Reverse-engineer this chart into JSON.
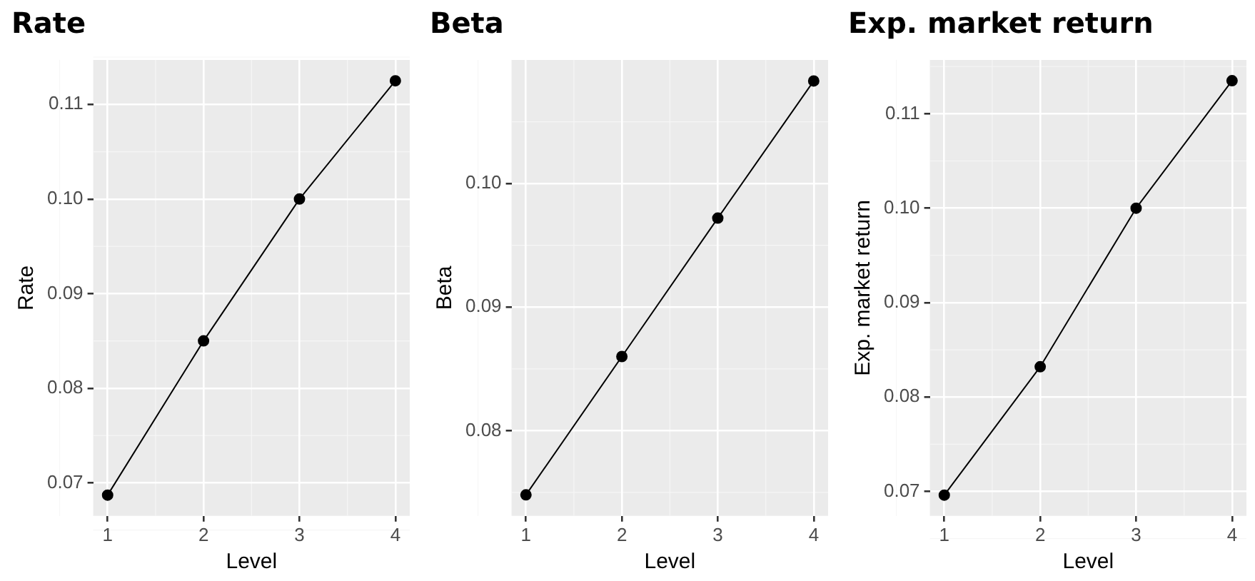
{
  "chart_data": [
    {
      "type": "line",
      "title": "Rate",
      "xlabel": "Level",
      "ylabel": "Rate",
      "x": [
        1,
        2,
        3,
        4
      ],
      "series": [
        {
          "color": "#000000",
          "values": [
            0.0687,
            0.085,
            0.1,
            0.1125
          ]
        }
      ],
      "xlim": [
        0.85,
        4.15
      ],
      "xticks": [
        1,
        2,
        3,
        4
      ],
      "ylim": [
        0.0665,
        0.1147
      ],
      "yticks": [
        {
          "value": 0.07,
          "label": "0.07"
        },
        {
          "value": 0.08,
          "label": "0.08"
        },
        {
          "value": 0.09,
          "label": "0.09"
        },
        {
          "value": 0.1,
          "label": "0.10"
        },
        {
          "value": 0.11,
          "label": "0.11"
        }
      ],
      "grid": true,
      "legend": false,
      "marker": "circle",
      "line_style": "solid"
    },
    {
      "type": "line",
      "title": "Beta",
      "xlabel": "Level",
      "ylabel": "Beta",
      "x": [
        1,
        2,
        3,
        4
      ],
      "series": [
        {
          "color": "#000000",
          "values": [
            0.0748,
            0.086,
            0.0972,
            0.1083
          ]
        }
      ],
      "xlim": [
        0.85,
        4.15
      ],
      "xticks": [
        1,
        2,
        3,
        4
      ],
      "ylim": [
        0.0731,
        0.11
      ],
      "yticks": [
        {
          "value": 0.08,
          "label": "0.08"
        },
        {
          "value": 0.09,
          "label": "0.09"
        },
        {
          "value": 0.1,
          "label": "0.10"
        }
      ],
      "grid": true,
      "legend": false,
      "marker": "circle",
      "line_style": "solid"
    },
    {
      "type": "line",
      "title": "Exp. market return",
      "xlabel": "Level",
      "ylabel": "Exp. market return",
      "x": [
        1,
        2,
        3,
        4
      ],
      "series": [
        {
          "color": "#000000",
          "values": [
            0.0696,
            0.0832,
            0.1,
            0.1135
          ]
        }
      ],
      "xlim": [
        0.85,
        4.15
      ],
      "xticks": [
        1,
        2,
        3,
        4
      ],
      "ylim": [
        0.0674,
        0.1157
      ],
      "yticks": [
        {
          "value": 0.07,
          "label": "0.07"
        },
        {
          "value": 0.08,
          "label": "0.08"
        },
        {
          "value": 0.09,
          "label": "0.09"
        },
        {
          "value": 0.1,
          "label": "0.10"
        },
        {
          "value": 0.11,
          "label": "0.11"
        }
      ],
      "grid": true,
      "legend": false,
      "marker": "circle",
      "line_style": "solid"
    }
  ]
}
